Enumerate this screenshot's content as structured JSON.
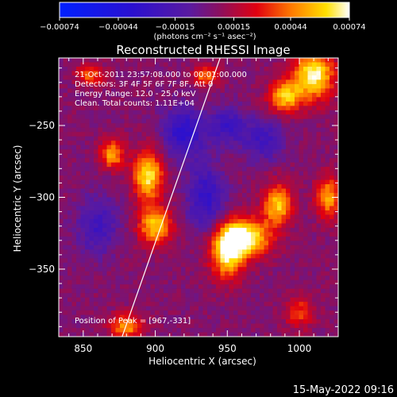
{
  "chart_data": {
    "type": "heatmap",
    "title": "Reconstructed RHESSI Image",
    "xlabel": "Heliocentric X (arcsec)",
    "ylabel": "Heliocentric Y (arcsec)",
    "xlim": [
      833,
      1027
    ],
    "ylim": [
      -397,
      -203
    ],
    "x_ticks": [
      850,
      900,
      950,
      1000
    ],
    "y_ticks": [
      -250,
      -300,
      -350
    ],
    "x_tick_labels": [
      "850",
      "900",
      "950",
      "1000"
    ],
    "y_tick_labels": [
      "−250",
      "−300",
      "−350"
    ],
    "colorbar": {
      "min": -0.00074,
      "max": 0.00074,
      "ticks": [
        -0.00074,
        -0.00044,
        -0.00015,
        0.00015,
        0.00044,
        0.00074
      ],
      "tick_labels": [
        "−0.00074",
        "−0.00044",
        "−0.00015",
        "0.00015",
        "0.00044",
        "0.00074"
      ],
      "unit": "(photons cm⁻² s⁻¹ asec⁻²)"
    },
    "annotations": [
      "21-Oct-2011 23:57:08.000  to 00:01:00.000",
      "Detectors: 3F 4F 5F 6F 7F 8F, Att 0",
      "Energy Range: 12.0 - 25.0 keV",
      "Clean.    Total counts: 1.11E+04",
      "Position of Peak = [967,-331]"
    ],
    "peak": {
      "x": 967,
      "y": -331
    },
    "limb_line": [
      {
        "x": 877,
        "y": -397
      },
      {
        "x": 945,
        "y": -203
      }
    ],
    "sources": [
      {
        "x": 962,
        "y": -328,
        "sx": 12,
        "sy": 9,
        "amp": 0.00074
      },
      {
        "x": 950,
        "y": -340,
        "sx": 8,
        "sy": 12,
        "amp": 0.00058
      },
      {
        "x": 985,
        "y": -305,
        "sx": 7,
        "sy": 10,
        "amp": 0.00055
      },
      {
        "x": 895,
        "y": -285,
        "sx": 7,
        "sy": 12,
        "amp": 0.00062
      },
      {
        "x": 900,
        "y": -320,
        "sx": 8,
        "sy": 9,
        "amp": 0.00055
      },
      {
        "x": 870,
        "y": -270,
        "sx": 6,
        "sy": 7,
        "amp": 0.00048
      },
      {
        "x": 880,
        "y": -390,
        "sx": 8,
        "sy": 6,
        "amp": 0.00045
      },
      {
        "x": 1010,
        "y": -215,
        "sx": 10,
        "sy": 12,
        "amp": 0.00066
      },
      {
        "x": 990,
        "y": -230,
        "sx": 8,
        "sy": 8,
        "amp": 0.00052
      },
      {
        "x": 935,
        "y": -215,
        "sx": 6,
        "sy": 5,
        "amp": 0.0004
      },
      {
        "x": 855,
        "y": -215,
        "sx": 7,
        "sy": 5,
        "amp": 0.00035
      },
      {
        "x": 1020,
        "y": -300,
        "sx": 6,
        "sy": 10,
        "amp": 0.00048
      },
      {
        "x": 1000,
        "y": -380,
        "sx": 7,
        "sy": 8,
        "amp": 0.0003
      },
      {
        "x": 920,
        "y": -255,
        "sx": 10,
        "sy": 12,
        "amp": -0.0004
      },
      {
        "x": 935,
        "y": -300,
        "sx": 9,
        "sy": 16,
        "amp": -0.00035
      },
      {
        "x": 950,
        "y": -250,
        "sx": 9,
        "sy": 9,
        "amp": -0.0003
      },
      {
        "x": 975,
        "y": -260,
        "sx": 10,
        "sy": 10,
        "amp": -0.00028
      },
      {
        "x": 860,
        "y": -320,
        "sx": 10,
        "sy": 14,
        "amp": -0.00028
      }
    ]
  },
  "footer": {
    "timestamp": "15-May-2022 09:16"
  }
}
